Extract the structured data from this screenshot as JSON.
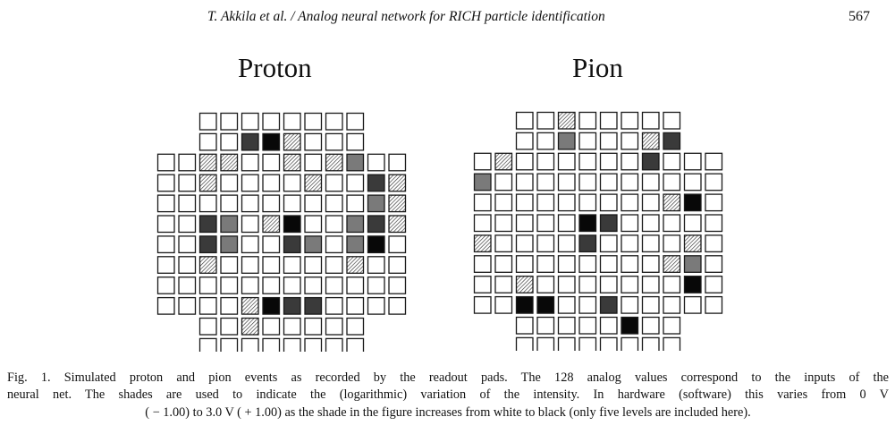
{
  "header": {
    "running_head": "T. Akkila et al.  / Analog neural network for RICH particle identification",
    "page_number": "567"
  },
  "figure": {
    "panels": [
      {
        "title": "Proton",
        "pad_levels": [
          [
            null,
            null,
            0,
            0,
            0,
            0,
            0,
            0,
            0,
            0,
            null,
            null
          ],
          [
            null,
            null,
            0,
            0,
            3,
            4,
            1,
            0,
            0,
            0,
            null,
            null
          ],
          [
            0,
            0,
            1,
            1,
            0,
            0,
            1,
            0,
            1,
            2,
            0,
            0
          ],
          [
            0,
            0,
            1,
            0,
            0,
            0,
            0,
            1,
            0,
            0,
            3,
            1
          ],
          [
            0,
            0,
            0,
            0,
            0,
            0,
            0,
            0,
            0,
            0,
            2,
            1
          ],
          [
            0,
            0,
            3,
            2,
            0,
            1,
            4,
            0,
            0,
            2,
            3,
            1
          ],
          [
            0,
            0,
            3,
            2,
            0,
            0,
            3,
            2,
            0,
            2,
            4,
            0
          ],
          [
            0,
            0,
            1,
            0,
            0,
            0,
            0,
            0,
            0,
            1,
            0,
            0
          ],
          [
            0,
            0,
            0,
            0,
            0,
            0,
            0,
            0,
            0,
            0,
            0,
            0
          ],
          [
            0,
            0,
            0,
            0,
            1,
            4,
            3,
            3,
            0,
            0,
            0,
            0
          ],
          [
            null,
            null,
            0,
            0,
            1,
            0,
            0,
            0,
            0,
            0,
            null,
            null
          ],
          [
            null,
            null,
            0,
            0,
            0,
            0,
            0,
            0,
            0,
            0,
            null,
            null
          ]
        ]
      },
      {
        "title": "Pion",
        "pad_levels": [
          [
            null,
            null,
            0,
            0,
            1,
            0,
            0,
            0,
            0,
            0,
            null,
            null
          ],
          [
            null,
            null,
            0,
            0,
            2,
            0,
            0,
            0,
            1,
            3,
            null,
            null
          ],
          [
            0,
            1,
            0,
            0,
            0,
            0,
            0,
            0,
            3,
            0,
            0,
            0
          ],
          [
            2,
            0,
            0,
            0,
            0,
            0,
            0,
            0,
            0,
            0,
            0,
            0
          ],
          [
            0,
            0,
            0,
            0,
            0,
            0,
            0,
            0,
            0,
            1,
            4,
            0
          ],
          [
            0,
            0,
            0,
            0,
            0,
            4,
            3,
            0,
            0,
            0,
            0,
            0
          ],
          [
            1,
            0,
            0,
            0,
            0,
            3,
            0,
            0,
            0,
            0,
            1,
            0
          ],
          [
            0,
            0,
            0,
            0,
            0,
            0,
            0,
            0,
            0,
            1,
            2,
            0
          ],
          [
            0,
            0,
            1,
            0,
            0,
            0,
            0,
            0,
            0,
            0,
            4,
            0
          ],
          [
            0,
            0,
            4,
            4,
            0,
            0,
            3,
            0,
            0,
            0,
            0,
            0
          ],
          [
            null,
            null,
            0,
            0,
            0,
            0,
            0,
            4,
            0,
            0,
            null,
            null
          ],
          [
            null,
            null,
            0,
            0,
            0,
            0,
            0,
            0,
            0,
            0,
            null,
            null
          ]
        ]
      }
    ],
    "shade_levels": [
      {
        "level": 0,
        "name": "white",
        "color": "#ffffff"
      },
      {
        "level": 1,
        "name": "light-hatch",
        "color": "#bdbdbd"
      },
      {
        "level": 2,
        "name": "medium",
        "color": "#7a7a7a"
      },
      {
        "level": 3,
        "name": "dark",
        "color": "#3a3a3a"
      },
      {
        "level": 4,
        "name": "black",
        "color": "#080808"
      }
    ],
    "caption": {
      "line1": "Fig. 1. Simulated proton and pion events as recorded by the readout pads. The 128 analog values correspond to the inputs of the",
      "line2": "neural net. The shades are used to indicate the (logarithmic) variation of the intensity. In hardware (software) this varies from 0 V",
      "line3": "( − 1.00) to 3.0 V ( + 1.00) as the shade in the figure increases from white to black (only five levels are included here)."
    }
  }
}
